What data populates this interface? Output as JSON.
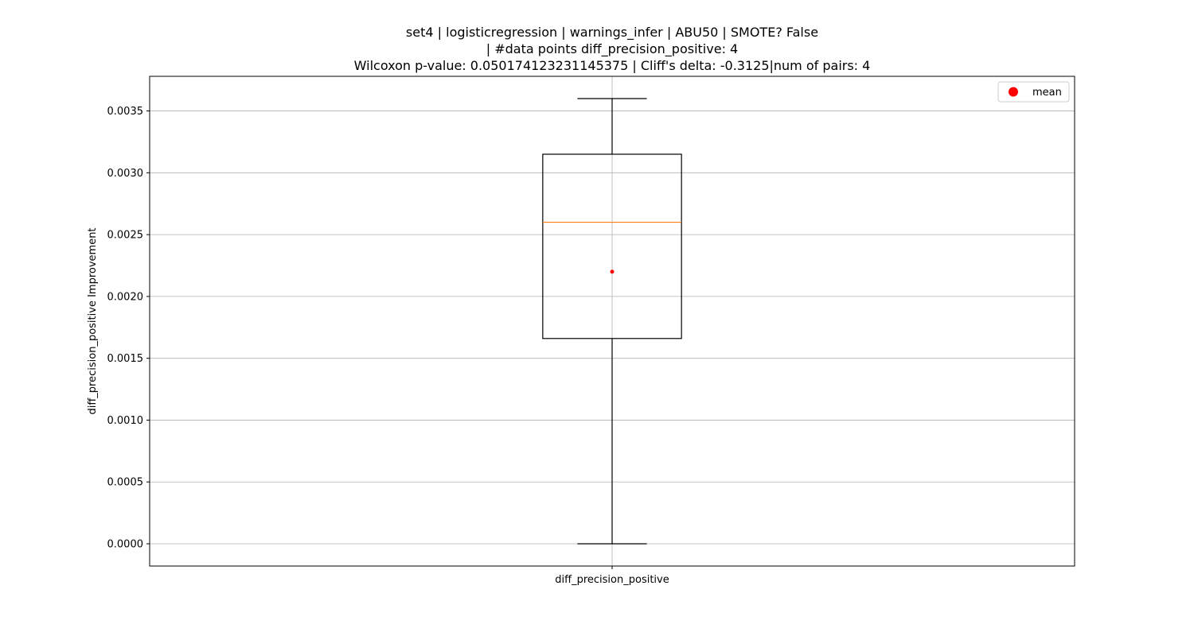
{
  "chart_data": {
    "type": "box",
    "title_lines": [
      "set4 | logisticregression | warnings_infer | ABU50 | SMOTE? False",
      "| #data points diff_precision_positive: 4",
      "Wilcoxon p-value: 0.050174123231145375 | Cliff's delta: -0.3125|num of pairs: 4"
    ],
    "xlabel": "",
    "ylabel": "diff_precision_positive Improvement",
    "categories": [
      "diff_precision_positive"
    ],
    "boxes": [
      {
        "category": "diff_precision_positive",
        "whisker_low": 0.0,
        "q1": 0.00166,
        "median": 0.0026,
        "q3": 0.00315,
        "whisker_high": 0.0036,
        "mean": 0.0022
      }
    ],
    "ylim": [
      -0.00018,
      0.00378
    ],
    "yticks": [
      0.0,
      0.0005,
      0.001,
      0.0015,
      0.002,
      0.0025,
      0.003,
      0.0035
    ],
    "ytick_labels": [
      "0.0000",
      "0.0005",
      "0.0010",
      "0.0015",
      "0.0020",
      "0.0025",
      "0.0030",
      "0.0035"
    ],
    "grid": true,
    "legend": {
      "placement": "top-right",
      "entries": [
        {
          "label": "mean",
          "color": "#ff0000",
          "marker": "circle"
        }
      ]
    },
    "colors": {
      "box": "#000000",
      "median": "#ff7f0e",
      "mean": "#ff0000",
      "grid": "#b0b0b0"
    }
  }
}
